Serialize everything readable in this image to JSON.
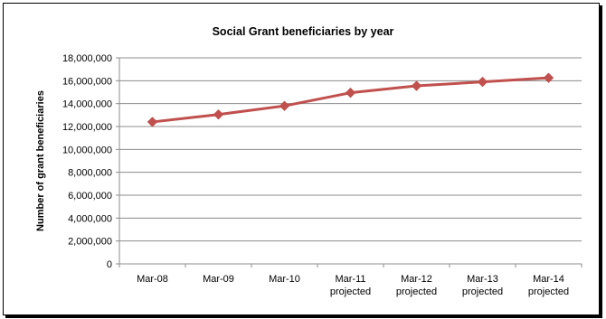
{
  "chart_data": {
    "type": "line",
    "title": "Social Grant beneficiaries by year",
    "xlabel": "",
    "ylabel": "Number of grant beneficiaries",
    "categories": [
      [
        "Mar-08"
      ],
      [
        "Mar-09"
      ],
      [
        "Mar-10"
      ],
      [
        "Mar-11",
        "projected"
      ],
      [
        "Mar-12",
        "projected"
      ],
      [
        "Mar-13",
        "projected"
      ],
      [
        "Mar-14",
        "projected"
      ]
    ],
    "series": [
      {
        "values": [
          12400000,
          13050000,
          13800000,
          14950000,
          15550000,
          15900000,
          16250000
        ],
        "color": "#c0504d",
        "marker": "diamond"
      }
    ],
    "ylim": [
      0,
      18000000
    ],
    "yticks": [
      0,
      2000000,
      4000000,
      6000000,
      8000000,
      10000000,
      12000000,
      14000000,
      16000000,
      18000000
    ],
    "ytick_labels": [
      "0",
      "2,000,000",
      "4,000,000",
      "6,000,000",
      "8,000,000",
      "10,000,000",
      "12,000,000",
      "14,000,000",
      "16,000,000",
      "18,000,000"
    ],
    "grid": true,
    "legend": "none",
    "gridline_color": "#8c8c8c"
  }
}
